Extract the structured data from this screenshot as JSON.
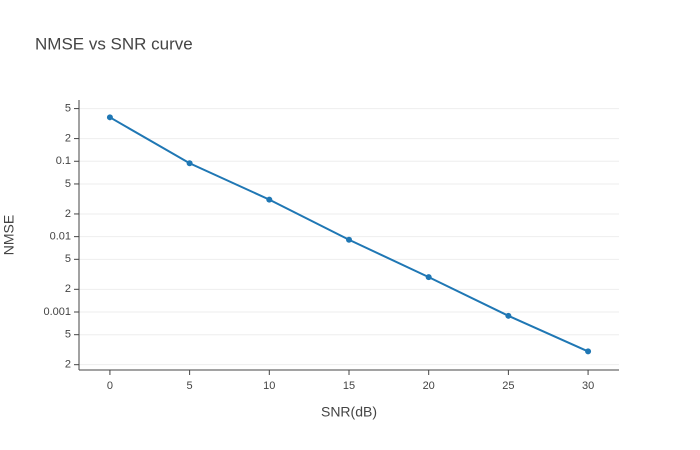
{
  "chart_data": {
    "type": "line",
    "title": "NMSE vs SNR curve",
    "x_label": "SNR(dB)",
    "y_label": "NMSE",
    "x": [
      0,
      5,
      10,
      15,
      20,
      25,
      30
    ],
    "series": [
      {
        "name": "NMSE",
        "color": "#1f77b4",
        "values": [
          0.383,
          0.094,
          0.031,
          0.0091,
          0.0029,
          0.00089,
          0.0003
        ]
      }
    ],
    "xlim": [
      -1.94,
      31.94
    ],
    "xticks": [
      0,
      5,
      10,
      15,
      20,
      25,
      30
    ],
    "ylim": [
      0.00017,
      0.65
    ],
    "log_y": true,
    "grid": true,
    "yticks": [
      {
        "value": 0.5,
        "label": "5"
      },
      {
        "value": 0.2,
        "label": "2"
      },
      0.1,
      {
        "value": 0.05,
        "label": "5"
      },
      {
        "value": 0.02,
        "label": "2"
      },
      0.01,
      {
        "value": 0.005,
        "label": "5"
      },
      {
        "value": 0.002,
        "label": "2"
      },
      0.001,
      {
        "value": 0.0005,
        "label": "5"
      },
      {
        "value": 0.0002,
        "label": "2"
      }
    ]
  }
}
